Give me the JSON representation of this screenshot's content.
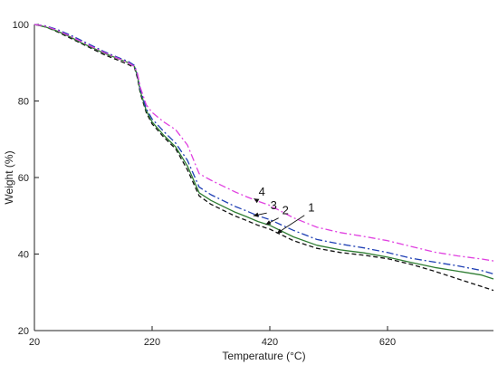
{
  "chart_data": {
    "type": "line",
    "xlabel": "Temperature (°C)",
    "ylabel": "Weight (%)",
    "xlim": [
      20,
      800
    ],
    "ylim": [
      20,
      100
    ],
    "xticks": [
      20,
      220,
      420,
      620
    ],
    "yticks": [
      20,
      40,
      60,
      80,
      100
    ],
    "grid": false,
    "series": [
      {
        "name": "1",
        "color": "#111111",
        "dash": "dashed",
        "x": [
          20,
          40,
          60,
          80,
          100,
          120,
          140,
          160,
          180,
          190,
          195,
          200,
          210,
          220,
          240,
          260,
          280,
          300,
          320,
          340,
          360,
          380,
          400,
          420,
          460,
          500,
          540,
          580,
          620,
          660,
          700,
          740,
          780,
          800
        ],
        "y": [
          100,
          99.3,
          98,
          96.5,
          95,
          93.5,
          92,
          90.8,
          89.5,
          88.7,
          86,
          82,
          77,
          74,
          70.5,
          67.5,
          62,
          55.2,
          53,
          51.5,
          50,
          48.8,
          47.5,
          46.5,
          43.5,
          41.5,
          40.4,
          39.7,
          38.8,
          37.3,
          35.5,
          33.5,
          31.5,
          30.5
        ]
      },
      {
        "name": "2",
        "color": "#2e7d32",
        "dash": "solid",
        "x": [
          20,
          40,
          60,
          80,
          100,
          120,
          140,
          160,
          180,
          190,
          195,
          200,
          210,
          220,
          240,
          260,
          280,
          300,
          320,
          340,
          360,
          380,
          400,
          420,
          460,
          500,
          540,
          580,
          620,
          660,
          700,
          740,
          780,
          800
        ],
        "y": [
          100,
          99.3,
          98.2,
          96.8,
          95.2,
          93.8,
          92.4,
          91.2,
          90,
          89,
          86.5,
          82.5,
          77.5,
          74.5,
          71,
          68,
          63,
          56,
          54,
          52.5,
          51,
          49.8,
          48.5,
          47.5,
          44.5,
          42.3,
          41.1,
          40.3,
          39.2,
          37.8,
          36.5,
          35.5,
          34.5,
          33.5
        ]
      },
      {
        "name": "3",
        "color": "#1e3fb4",
        "dash": "dashdot",
        "x": [
          20,
          40,
          60,
          80,
          100,
          120,
          140,
          160,
          180,
          190,
          195,
          200,
          210,
          220,
          240,
          260,
          280,
          300,
          320,
          340,
          360,
          380,
          400,
          420,
          460,
          500,
          540,
          580,
          620,
          660,
          700,
          740,
          780,
          800
        ],
        "y": [
          100,
          99.6,
          98.6,
          97.3,
          95.8,
          94.3,
          92.8,
          91.5,
          90.3,
          89.3,
          87,
          83,
          78,
          75.3,
          72,
          69,
          64.5,
          57.5,
          55.5,
          54,
          52.5,
          51.3,
          50,
          49,
          46.2,
          43.8,
          42.6,
          41.6,
          40.4,
          38.9,
          37.9,
          36.9,
          35.7,
          34.8
        ]
      },
      {
        "name": "4",
        "color": "#e040e0",
        "dash": "dashdot",
        "x": [
          20,
          40,
          60,
          80,
          100,
          120,
          140,
          160,
          180,
          190,
          195,
          200,
          210,
          220,
          240,
          260,
          280,
          300,
          320,
          340,
          360,
          380,
          400,
          420,
          460,
          500,
          540,
          580,
          620,
          660,
          700,
          740,
          780,
          800
        ],
        "y": [
          100,
          99.5,
          98.4,
          97,
          95.5,
          94,
          92.6,
          91.3,
          90,
          89,
          87.2,
          83.5,
          79,
          77,
          74.5,
          72.5,
          68.5,
          61,
          59.3,
          57.8,
          56.3,
          55,
          53.8,
          52.7,
          49.5,
          47,
          45.6,
          44.6,
          43.5,
          42,
          40.5,
          39.5,
          38.7,
          38.2
        ]
      }
    ],
    "annotations": [
      {
        "text": "4",
        "series": "4",
        "label_at": [
          401,
          54.8
        ],
        "arrow_to": [
          393,
          54.5
        ]
      },
      {
        "text": "3",
        "series": "3",
        "label_at": [
          421,
          51.2
        ],
        "arrow_to": [
          392,
          50
        ]
      },
      {
        "text": "2",
        "series": "2",
        "label_at": [
          441,
          49.9
        ],
        "arrow_to": [
          413,
          47.7
        ]
      },
      {
        "text": "1",
        "series": "1",
        "label_at": [
          485,
          50.6
        ],
        "arrow_to": [
          432,
          45.4
        ]
      }
    ]
  }
}
